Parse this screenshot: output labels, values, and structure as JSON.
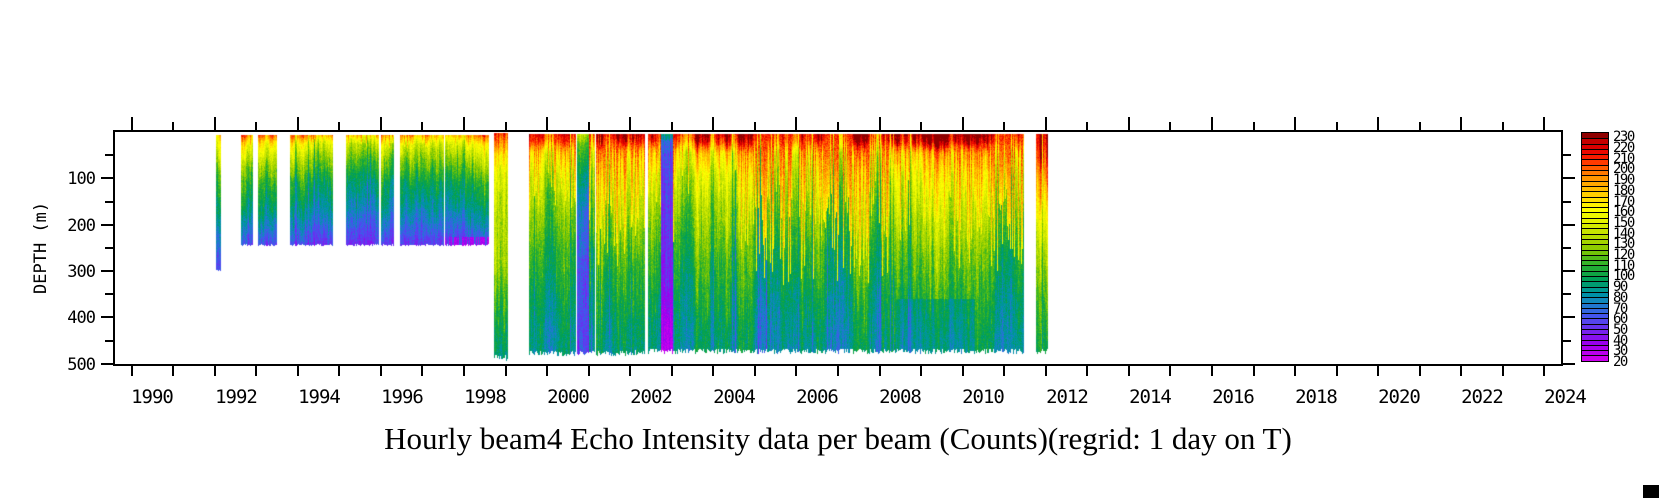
{
  "chart_data": {
    "type": "heatmap",
    "title": "Hourly beam4 Echo Intensity data per beam (Counts)(regrid: 1 day on T)",
    "x_axis": {
      "range": [
        1989.6,
        2024.4
      ],
      "tick_from": 1990,
      "tick_to": 2024,
      "tick_step": 1,
      "label_years": [
        1990,
        1992,
        1994,
        1996,
        1998,
        2000,
        2002,
        2004,
        2006,
        2008,
        2010,
        2012,
        2014,
        2016,
        2018,
        2020,
        2022,
        2024
      ],
      "label_offset": 0.5
    },
    "y_axis": {
      "label": "DEPTH (m)",
      "range": [
        0,
        500.5
      ],
      "tick_step": 50,
      "label_ticks": [
        100,
        200,
        300,
        400,
        500
      ]
    },
    "colorbar": {
      "min": 20,
      "max": 235,
      "step": 5,
      "labels": [
        230,
        220,
        210,
        200,
        190,
        180,
        170,
        160,
        150,
        140,
        130,
        120,
        110,
        100,
        90,
        80,
        70,
        60,
        50,
        40,
        30,
        20
      ],
      "colors": [
        "#cc00ee",
        "#bb00ee",
        "#aa00ee",
        "#9900ee",
        "#8811ee",
        "#7722ee",
        "#6633ee",
        "#5544ee",
        "#4455ee",
        "#3366e0",
        "#2277d0",
        "#1188bb",
        "#0090a8",
        "#009990",
        "#009c70",
        "#00a055",
        "#10a444",
        "#20aa36",
        "#35b328",
        "#50bb18",
        "#70c408",
        "#8ecc00",
        "#a4d400",
        "#b6dc00",
        "#c6e400",
        "#d6ec00",
        "#e6f400",
        "#eef800",
        "#fcff00",
        "#fff200",
        "#ffe000",
        "#ffce00",
        "#ffbc00",
        "#ffa900",
        "#ff9500",
        "#ff7a00",
        "#ff5c00",
        "#ff3a00",
        "#f81c00",
        "#ea0800",
        "#d90000",
        "#c40000",
        "#8f0000"
      ]
    },
    "profiles": {
      "stripe92": [
        [
          0,
          195
        ],
        [
          12,
          172
        ],
        [
          45,
          150
        ],
        [
          100,
          116
        ],
        [
          170,
          96
        ],
        [
          230,
          76
        ],
        [
          299,
          62
        ]
      ],
      "shallow": [
        [
          0,
          206
        ],
        [
          8,
          193
        ],
        [
          25,
          163
        ],
        [
          60,
          136
        ],
        [
          110,
          108
        ],
        [
          160,
          93
        ],
        [
          200,
          77
        ],
        [
          245,
          57
        ]
      ],
      "deep98": [
        [
          0,
          225
        ],
        [
          25,
          205
        ],
        [
          50,
          185
        ],
        [
          90,
          163
        ],
        [
          160,
          152
        ],
        [
          280,
          142
        ],
        [
          340,
          126
        ],
        [
          420,
          110
        ],
        [
          492,
          97
        ]
      ],
      "main": [
        [
          0,
          226
        ],
        [
          18,
          213
        ],
        [
          45,
          172
        ],
        [
          90,
          152
        ],
        [
          170,
          134
        ],
        [
          260,
          117
        ],
        [
          350,
          104
        ],
        [
          430,
          95
        ],
        [
          485,
          92
        ]
      ],
      "coldband": [
        [
          0,
          140
        ],
        [
          25,
          118
        ],
        [
          70,
          98
        ],
        [
          130,
          80
        ],
        [
          200,
          66
        ],
        [
          300,
          60
        ],
        [
          420,
          58
        ],
        [
          485,
          55
        ]
      ],
      "blueband": [
        [
          0,
          98
        ],
        [
          12,
          86
        ],
        [
          20,
          68
        ],
        [
          60,
          60
        ],
        [
          200,
          54
        ],
        [
          350,
          44
        ],
        [
          420,
          32
        ],
        [
          478,
          25
        ]
      ],
      "stripe11": [
        [
          0,
          228
        ],
        [
          60,
          212
        ],
        [
          120,
          186
        ],
        [
          180,
          161
        ],
        [
          260,
          141
        ],
        [
          350,
          121
        ],
        [
          478,
          101
        ]
      ]
    },
    "segments": [
      {
        "x0": 1992.02,
        "x1": 1992.15,
        "d0": 5,
        "d1": 299,
        "p": "stripe92",
        "fp": 0.1,
        "fd": [
          15,
          50
        ]
      },
      {
        "x0": 1992.63,
        "x1": 1992.92,
        "d0": 6,
        "d1": 245,
        "p": "shallow",
        "fp": 0.3,
        "fd": [
          8,
          35
        ]
      },
      {
        "x0": 1993.05,
        "x1": 1993.5,
        "d0": 6,
        "d1": 245,
        "p": "shallow",
        "fp": 0.3,
        "fd": [
          8,
          35
        ]
      },
      {
        "x0": 1993.82,
        "x1": 1994.85,
        "d0": 6,
        "d1": 245,
        "p": "shallow",
        "fp": 0.3,
        "fd": [
          8,
          35
        ]
      },
      {
        "x0": 1995.15,
        "x1": 1995.95,
        "d0": 6,
        "d1": 245,
        "p": "shallow",
        "fp": 0.3,
        "fd": [
          8,
          35
        ]
      },
      {
        "x0": 1996.0,
        "x1": 1996.31,
        "d0": 6,
        "d1": 245,
        "p": "shallow",
        "fp": 0.3,
        "fd": [
          8,
          35
        ]
      },
      {
        "x0": 1996.45,
        "x1": 1997.52,
        "d0": 6,
        "d1": 245,
        "p": "shallow",
        "fp": 0.3,
        "fd": [
          8,
          35
        ]
      },
      {
        "x0": 1997.55,
        "x1": 1998.6,
        "d0": 6,
        "d1": 245,
        "p": "shallow",
        "fp": 0.3,
        "fd": [
          8,
          35
        ],
        "mb": true
      },
      {
        "x0": 1998.73,
        "x1": 1999.05,
        "d0": 2,
        "d1": 492,
        "p": "deep98",
        "fp": 0.15,
        "fd": [
          20,
          60
        ]
      },
      {
        "x0": 1999.57,
        "x1": 2000.7,
        "d0": 4,
        "d1": 482,
        "p": "main",
        "fp": 0.35,
        "fd": [
          50,
          170
        ]
      },
      {
        "x0": 2000.72,
        "x1": 2001.14,
        "d0": 4,
        "d1": 482,
        "p": "main",
        "fp": 0.25,
        "fd": [
          60,
          200
        ]
      },
      {
        "x0": 2001.17,
        "x1": 2002.36,
        "d0": 4,
        "d1": 482,
        "p": "main",
        "fp": 0.5,
        "fd": [
          100,
          300
        ]
      },
      {
        "x0": 2002.43,
        "x1": 2011.48,
        "d0": 3,
        "d1": 478,
        "p": "main",
        "fp": 0.3,
        "fd": [
          70,
          260
        ]
      },
      {
        "x0": 2011.76,
        "x1": 2012.06,
        "d0": 4,
        "d1": 478,
        "p": "stripe11",
        "fp": 0.2,
        "fd": [
          140,
          220
        ]
      }
    ],
    "overrides": [
      {
        "x0": 2000.73,
        "x1": 2001.0,
        "p": "coldband",
        "fp": 0
      },
      {
        "x0": 2002.43,
        "x1": 2002.73,
        "fp": 0.45,
        "fd": [
          60,
          170
        ]
      },
      {
        "x0": 2002.74,
        "x1": 2003.04,
        "p": "blueband",
        "fp": 0
      },
      {
        "x0": 2003.05,
        "x1": 2004.35,
        "fp": 0.12,
        "fd": [
          50,
          140
        ]
      },
      {
        "x0": 2004.8,
        "x1": 2008.2,
        "fp": 0.5,
        "fd": [
          100,
          330
        ]
      },
      {
        "x0": 2008.4,
        "x1": 2010.3,
        "df": 0.88
      },
      {
        "x0": 2009.6,
        "x1": 2011.45,
        "fp": 0.5,
        "fd": [
          120,
          300
        ]
      }
    ]
  }
}
